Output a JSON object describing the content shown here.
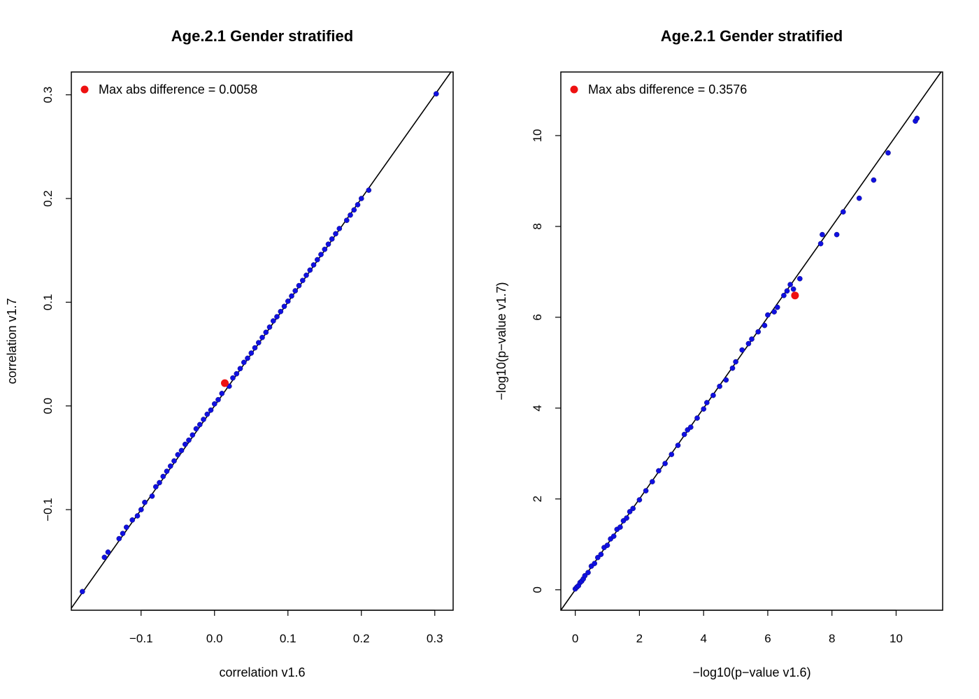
{
  "chart_data": [
    {
      "type": "scatter",
      "title": "Age.2.1 Gender stratified",
      "xlabel": "correlation v1.6",
      "ylabel": "correlation v1.7",
      "xlim": [
        -0.195,
        0.325
      ],
      "ylim": [
        -0.197,
        0.322
      ],
      "xticks": [
        -0.1,
        0.0,
        0.1,
        0.2,
        0.3
      ],
      "xtick_labels": [
        "−0.1",
        "0.0",
        "0.1",
        "0.2",
        "0.3"
      ],
      "yticks": [
        -0.1,
        0.0,
        0.1,
        0.2,
        0.3
      ],
      "ytick_labels": [
        "−0.1",
        "0.0",
        "0.1",
        "0.2",
        "0.3"
      ],
      "legend": {
        "text": "Max abs difference = 0.0058",
        "color": "#ee1111",
        "placement": "top-left"
      },
      "reference_line": "identity",
      "grid": false,
      "colors": {
        "points": "#1010e0",
        "highlight": "#ee1111",
        "line": "#000000"
      },
      "series": [
        {
          "x": [
            -0.18,
            -0.15,
            -0.145,
            -0.13,
            -0.125,
            -0.12,
            -0.112,
            -0.105,
            -0.1,
            -0.095,
            -0.085,
            -0.08,
            -0.075,
            -0.07,
            -0.065,
            -0.06,
            -0.055,
            -0.05,
            -0.045,
            -0.04,
            -0.035,
            -0.03,
            -0.025,
            -0.02,
            -0.015,
            -0.01,
            -0.005,
            0.0,
            0.005,
            0.01,
            0.02,
            0.025,
            0.03,
            0.035,
            0.04,
            0.045,
            0.05,
            0.055,
            0.06,
            0.065,
            0.07,
            0.075,
            0.08,
            0.085,
            0.09,
            0.095,
            0.1,
            0.105,
            0.11,
            0.115,
            0.12,
            0.125,
            0.13,
            0.135,
            0.14,
            0.145,
            0.15,
            0.155,
            0.16,
            0.165,
            0.17,
            0.18,
            0.185,
            0.19,
            0.195,
            0.2,
            0.21,
            0.302
          ],
          "y": [
            -0.179,
            -0.146,
            -0.141,
            -0.128,
            -0.123,
            -0.117,
            -0.11,
            -0.106,
            -0.1,
            -0.093,
            -0.087,
            -0.078,
            -0.074,
            -0.068,
            -0.063,
            -0.058,
            -0.053,
            -0.047,
            -0.043,
            -0.037,
            -0.033,
            -0.028,
            -0.022,
            -0.018,
            -0.013,
            -0.008,
            -0.004,
            0.002,
            0.006,
            0.012,
            0.019,
            0.027,
            0.031,
            0.036,
            0.042,
            0.046,
            0.051,
            0.056,
            0.061,
            0.066,
            0.071,
            0.076,
            0.082,
            0.086,
            0.091,
            0.096,
            0.101,
            0.106,
            0.111,
            0.116,
            0.121,
            0.126,
            0.131,
            0.136,
            0.141,
            0.146,
            0.151,
            0.156,
            0.161,
            0.166,
            0.171,
            0.179,
            0.184,
            0.189,
            0.194,
            0.2,
            0.208,
            0.301
          ]
        }
      ],
      "highlight_point": {
        "x": 0.014,
        "y": 0.022
      }
    },
    {
      "type": "scatter",
      "title": "Age.2.1 Gender stratified",
      "xlabel": "−log10(p−value v1.6)",
      "ylabel": "−log10(p−value v1.7)",
      "xlim": [
        -0.45,
        11.45
      ],
      "ylim": [
        -0.45,
        11.4
      ],
      "xticks": [
        0,
        2,
        4,
        6,
        8,
        10
      ],
      "xtick_labels": [
        "0",
        "2",
        "4",
        "6",
        "8",
        "10"
      ],
      "yticks": [
        0,
        2,
        4,
        6,
        8,
        10
      ],
      "ytick_labels": [
        "0",
        "2",
        "4",
        "6",
        "8",
        "10"
      ],
      "legend": {
        "text": "Max abs difference = 0.3576",
        "color": "#ee1111",
        "placement": "top-left"
      },
      "reference_line": "identity",
      "grid": false,
      "colors": {
        "points": "#1010e0",
        "highlight": "#ee1111",
        "line": "#000000"
      },
      "series": [
        {
          "x": [
            0.0,
            0.05,
            0.1,
            0.15,
            0.2,
            0.25,
            0.3,
            0.4,
            0.5,
            0.6,
            0.7,
            0.8,
            0.9,
            1.0,
            1.1,
            1.2,
            1.3,
            1.4,
            1.5,
            1.6,
            1.7,
            1.8,
            2.0,
            2.2,
            2.4,
            2.6,
            2.8,
            3.0,
            3.2,
            3.4,
            3.5,
            3.6,
            3.8,
            4.0,
            4.1,
            4.3,
            4.5,
            4.7,
            4.9,
            5.0,
            5.2,
            5.4,
            5.5,
            5.7,
            5.9,
            6.0,
            6.2,
            6.3,
            6.5,
            6.6,
            6.7,
            6.8,
            7.0,
            7.7,
            7.65,
            8.15,
            8.35,
            8.85,
            9.3,
            9.75,
            10.6,
            10.65
          ],
          "y": [
            0.02,
            0.06,
            0.09,
            0.16,
            0.19,
            0.24,
            0.31,
            0.38,
            0.52,
            0.58,
            0.71,
            0.78,
            0.93,
            0.98,
            1.12,
            1.18,
            1.33,
            1.38,
            1.52,
            1.58,
            1.72,
            1.79,
            1.98,
            2.18,
            2.38,
            2.62,
            2.78,
            2.98,
            3.18,
            3.42,
            3.52,
            3.58,
            3.78,
            3.98,
            4.12,
            4.28,
            4.48,
            4.62,
            4.88,
            5.02,
            5.28,
            5.42,
            5.52,
            5.68,
            5.82,
            6.05,
            6.12,
            6.22,
            6.48,
            6.58,
            6.72,
            6.62,
            6.85,
            7.82,
            7.62,
            7.82,
            8.32,
            8.62,
            9.02,
            9.62,
            10.32,
            10.38
          ]
        }
      ],
      "highlight_point": {
        "x": 6.85,
        "y": 6.48
      }
    }
  ]
}
